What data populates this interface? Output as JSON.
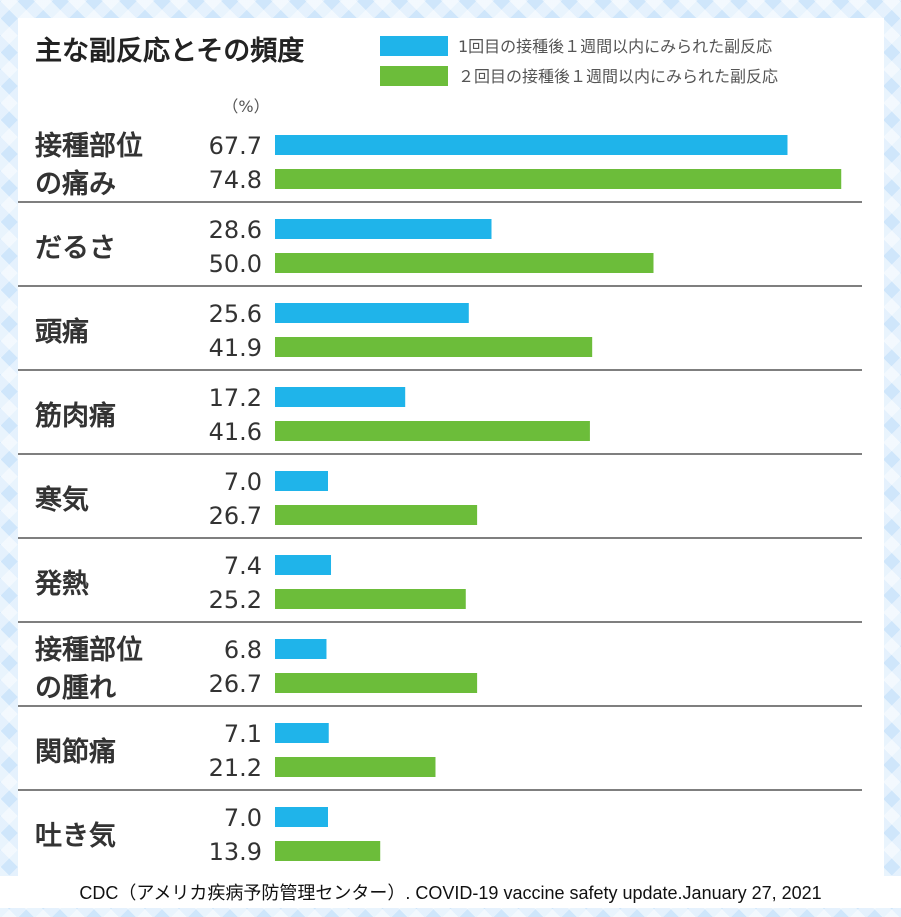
{
  "chart_data": {
    "type": "bar",
    "orientation": "horizontal",
    "title": "主な副反応とその頻度",
    "unit": "（%）",
    "categories": [
      [
        "接種部位",
        "の痛み"
      ],
      [
        "だるさ"
      ],
      [
        "頭痛"
      ],
      [
        "筋肉痛"
      ],
      [
        "寒気"
      ],
      [
        "発熱"
      ],
      [
        "接種部位",
        "の腫れ"
      ],
      [
        "関節痛"
      ],
      [
        "吐き気"
      ]
    ],
    "series": [
      {
        "name": "1回目の接種後１週間以内にみられた副反応",
        "color": "#1fb4ea",
        "values": [
          67.7,
          28.6,
          25.6,
          17.2,
          7.0,
          7.4,
          6.8,
          7.1,
          7.0
        ]
      },
      {
        "name": "２回目の接種後１週間以内にみられた副反応",
        "color": "#6cbd3a",
        "values": [
          74.8,
          50.0,
          41.9,
          41.6,
          26.7,
          25.2,
          26.7,
          21.2,
          13.9
        ]
      }
    ],
    "xlim": [
      0,
      100
    ],
    "grid": false,
    "legend_position": "top-right"
  },
  "source": "CDC（アメリカ疾病予防管理センター）. COVID-19 vaccine safety update.January 27, 2021"
}
